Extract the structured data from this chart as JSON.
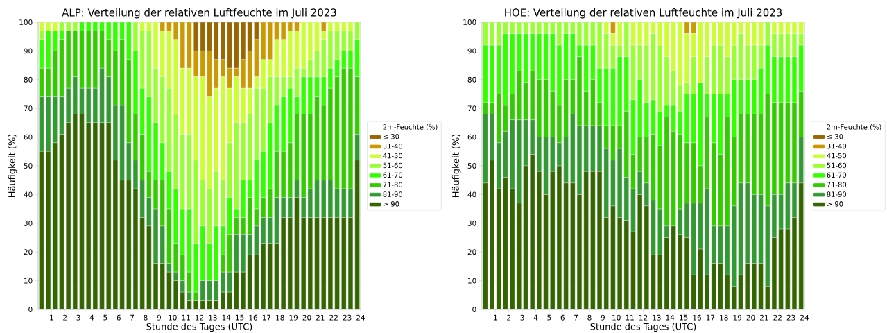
{
  "chart_data": [
    {
      "type": "bar",
      "stacked": true,
      "title": "ALP: Verteilung der relativen Luftfeuchte im Juli 2023",
      "xlabel": "Stunde des Tages (UTC)",
      "ylabel": "Häufigkeit (%)",
      "legend_title": "2m-Feuchte (%)",
      "legend": "right",
      "grid": "y",
      "x": [
        0.25,
        0.75,
        1.25,
        1.75,
        2.25,
        2.75,
        3.25,
        3.75,
        4.25,
        4.75,
        5.25,
        5.75,
        6.25,
        6.75,
        7.25,
        7.75,
        8.25,
        8.75,
        9.25,
        9.75,
        10.25,
        10.75,
        11.25,
        11.75,
        12.25,
        12.75,
        13.25,
        13.75,
        14.25,
        14.75,
        15.25,
        15.75,
        16.25,
        16.75,
        17.25,
        17.75,
        18.25,
        18.75,
        19.25,
        19.75,
        20.25,
        20.75,
        21.25,
        21.75,
        22.25,
        22.75,
        23.25,
        23.75
      ],
      "xlim": [
        0,
        24
      ],
      "xticks": [
        1,
        2,
        3,
        4,
        5,
        6,
        7,
        8,
        9,
        10,
        11,
        12,
        13,
        14,
        15,
        16,
        17,
        18,
        19,
        20,
        21,
        22,
        23,
        24
      ],
      "ylim": [
        0,
        100
      ],
      "yticks": [
        0,
        10,
        20,
        30,
        40,
        50,
        60,
        70,
        80,
        90,
        100
      ],
      "series": [
        {
          "name": "> 90",
          "color": "#336600",
          "values": [
            55,
            55,
            58,
            61,
            65,
            68,
            68,
            65,
            65,
            65,
            65,
            52,
            45,
            45,
            42,
            32,
            29,
            16,
            16,
            13,
            10,
            6,
            3,
            3,
            3,
            3,
            3,
            6,
            6,
            13,
            13,
            19,
            19,
            23,
            23,
            23,
            32,
            32,
            39,
            32,
            32,
            32,
            32,
            32,
            32,
            32,
            32,
            52
          ]
        },
        {
          "name": "81-90",
          "color": "#339933",
          "values": [
            19,
            19,
            16,
            13,
            12,
            13,
            9,
            12,
            12,
            19,
            16,
            19,
            26,
            13,
            10,
            13,
            10,
            19,
            13,
            3,
            3,
            4,
            3,
            0,
            7,
            7,
            7,
            7,
            7,
            13,
            13,
            7,
            10,
            9,
            9,
            16,
            7,
            7,
            6,
            7,
            10,
            13,
            13,
            13,
            10,
            10,
            10,
            9
          ]
        },
        {
          "name": "71-80",
          "color": "#33cc00",
          "values": [
            10,
            10,
            16,
            20,
            20,
            16,
            20,
            20,
            20,
            13,
            13,
            19,
            23,
            29,
            16,
            16,
            9,
            10,
            16,
            19,
            10,
            9,
            7,
            3,
            0,
            0,
            0,
            6,
            13,
            6,
            6,
            13,
            6,
            7,
            10,
            16,
            16,
            19,
            23,
            29,
            26,
            29,
            26,
            32,
            39,
            42,
            42,
            20
          ]
        },
        {
          "name": "61-70",
          "color": "#33ff00",
          "values": [
            10,
            13,
            7,
            3,
            0,
            0,
            3,
            3,
            3,
            3,
            6,
            10,
            6,
            13,
            22,
            16,
            26,
            20,
            13,
            13,
            19,
            16,
            22,
            17,
            19,
            13,
            19,
            10,
            13,
            3,
            13,
            6,
            17,
            16,
            23,
            16,
            19,
            19,
            6,
            13,
            13,
            7,
            10,
            7,
            6,
            6,
            6,
            13
          ]
        },
        {
          "name": "51-60",
          "color": "#99ff33",
          "values": [
            3,
            0,
            0,
            3,
            3,
            3,
            0,
            0,
            0,
            0,
            0,
            0,
            0,
            0,
            10,
            20,
            23,
            19,
            23,
            29,
            26,
            26,
            26,
            29,
            16,
            19,
            19,
            16,
            19,
            30,
            20,
            23,
            25,
            22,
            16,
            10,
            7,
            4,
            10,
            3,
            6,
            9,
            13,
            13,
            10,
            7,
            7,
            6
          ]
        },
        {
          "name": "41-50",
          "color": "#ccff33",
          "values": [
            3,
            3,
            3,
            0,
            0,
            0,
            0,
            0,
            0,
            0,
            0,
            0,
            0,
            0,
            0,
            3,
            3,
            16,
            16,
            20,
            26,
            23,
            23,
            29,
            36,
            32,
            29,
            36,
            19,
            16,
            12,
            9,
            4,
            10,
            6,
            13,
            13,
            16,
            13,
            16,
            13,
            10,
            3,
            3,
            3,
            3,
            3,
            0
          ]
        },
        {
          "name": "31-40",
          "color": "#cc9900",
          "values": [
            0,
            0,
            0,
            0,
            0,
            0,
            0,
            0,
            0,
            0,
            0,
            0,
            0,
            0,
            0,
            0,
            0,
            0,
            3,
            3,
            6,
            16,
            16,
            9,
            9,
            16,
            10,
            6,
            7,
            3,
            10,
            13,
            13,
            13,
            13,
            6,
            6,
            3,
            3,
            0,
            0,
            0,
            3,
            0,
            0,
            0,
            0,
            0
          ]
        },
        {
          "name": "≤ 30",
          "color": "#996600",
          "values": [
            0,
            0,
            0,
            0,
            0,
            0,
            0,
            0,
            0,
            0,
            0,
            0,
            0,
            0,
            0,
            0,
            0,
            0,
            0,
            0,
            0,
            0,
            0,
            10,
            10,
            10,
            13,
            13,
            16,
            16,
            13,
            10,
            6,
            0,
            0,
            0,
            0,
            0,
            0,
            0,
            0,
            0,
            0,
            0,
            0,
            0,
            0,
            0
          ]
        }
      ]
    },
    {
      "type": "bar",
      "stacked": true,
      "title": "HOE: Verteilung der relativen Luftfeuchte im Juli 2023",
      "xlabel": "Stunde des Tages (UTC)",
      "ylabel": "Häufigkeit (%)",
      "legend_title": "2m-Feuchte (%)",
      "legend": "right",
      "grid": "y",
      "x": [
        0.25,
        0.75,
        1.25,
        1.75,
        2.25,
        2.75,
        3.25,
        3.75,
        4.25,
        4.75,
        5.25,
        5.75,
        6.25,
        6.75,
        7.25,
        7.75,
        8.25,
        8.75,
        9.25,
        9.75,
        10.25,
        10.75,
        11.25,
        11.75,
        12.25,
        12.75,
        13.25,
        13.75,
        14.25,
        14.75,
        15.25,
        15.75,
        16.25,
        16.75,
        17.25,
        17.75,
        18.25,
        18.75,
        19.25,
        19.75,
        20.25,
        20.75,
        21.25,
        21.75,
        22.25,
        22.75,
        23.25,
        23.75
      ],
      "xlim": [
        0,
        24
      ],
      "xticks": [
        1,
        2,
        3,
        4,
        5,
        6,
        7,
        8,
        9,
        10,
        11,
        12,
        13,
        14,
        15,
        16,
        17,
        18,
        19,
        20,
        21,
        22,
        23,
        24
      ],
      "ylim": [
        0,
        100
      ],
      "yticks": [
        0,
        10,
        20,
        30,
        40,
        50,
        60,
        70,
        80,
        90,
        100
      ],
      "series": [
        {
          "name": "> 90",
          "color": "#336600",
          "values": [
            44,
            52,
            42,
            46,
            42,
            37,
            50,
            54,
            48,
            40,
            48,
            50,
            44,
            44,
            40,
            48,
            48,
            48,
            32,
            36,
            32,
            31,
            27,
            40,
            36,
            19,
            19,
            25,
            29,
            26,
            25,
            12,
            21,
            12,
            16,
            16,
            12,
            8,
            12,
            16,
            16,
            16,
            8,
            25,
            28,
            28,
            32,
            44
          ]
        },
        {
          "name": "81-90",
          "color": "#339933",
          "values": [
            24,
            16,
            16,
            16,
            24,
            29,
            16,
            12,
            12,
            20,
            12,
            8,
            16,
            24,
            24,
            16,
            16,
            16,
            24,
            16,
            24,
            15,
            15,
            8,
            8,
            19,
            16,
            4,
            0,
            9,
            12,
            25,
            16,
            30,
            13,
            13,
            17,
            28,
            32,
            28,
            24,
            24,
            28,
            15,
            12,
            16,
            12,
            16
          ]
        },
        {
          "name": "71-80",
          "color": "#33cc00",
          "values": [
            4,
            4,
            17,
            9,
            9,
            17,
            13,
            17,
            20,
            20,
            16,
            13,
            20,
            12,
            24,
            12,
            16,
            8,
            8,
            12,
            8,
            23,
            12,
            12,
            16,
            23,
            22,
            38,
            33,
            26,
            21,
            21,
            13,
            25,
            29,
            25,
            38,
            24,
            24,
            24,
            28,
            28,
            39,
            32,
            32,
            28,
            28,
            16
          ]
        },
        {
          "name": "61-70",
          "color": "#33ff00",
          "values": [
            20,
            20,
            17,
            25,
            21,
            13,
            17,
            13,
            16,
            16,
            20,
            21,
            16,
            16,
            4,
            16,
            12,
            12,
            20,
            20,
            24,
            19,
            19,
            20,
            12,
            12,
            12,
            4,
            9,
            8,
            17,
            17,
            29,
            8,
            17,
            21,
            8,
            20,
            12,
            12,
            12,
            16,
            17,
            16,
            16,
            16,
            16,
            16
          ]
        },
        {
          "name": "51-60",
          "color": "#99ff33",
          "values": [
            8,
            8,
            8,
            4,
            4,
            4,
            4,
            4,
            4,
            4,
            4,
            8,
            4,
            4,
            8,
            8,
            8,
            16,
            12,
            8,
            4,
            12,
            19,
            12,
            20,
            23,
            23,
            17,
            12,
            9,
            4,
            13,
            0,
            13,
            17,
            17,
            13,
            12,
            16,
            12,
            12,
            8,
            8,
            8,
            8,
            8,
            8,
            4
          ]
        },
        {
          "name": "41-50",
          "color": "#ccff33",
          "values": [
            0,
            0,
            0,
            0,
            0,
            0,
            0,
            0,
            0,
            0,
            0,
            0,
            0,
            0,
            0,
            0,
            0,
            0,
            4,
            4,
            8,
            0,
            8,
            8,
            8,
            4,
            8,
            12,
            17,
            22,
            17,
            8,
            21,
            12,
            8,
            8,
            12,
            8,
            4,
            8,
            8,
            8,
            0,
            4,
            4,
            4,
            4,
            4
          ]
        },
        {
          "name": "31-40",
          "color": "#cc9900",
          "values": [
            0,
            0,
            0,
            0,
            0,
            0,
            0,
            0,
            0,
            0,
            0,
            0,
            0,
            0,
            0,
            0,
            0,
            0,
            0,
            4,
            0,
            0,
            0,
            0,
            0,
            0,
            0,
            0,
            0,
            0,
            4,
            4,
            0,
            0,
            0,
            0,
            0,
            0,
            0,
            0,
            0,
            0,
            0,
            0,
            0,
            0,
            0,
            0
          ]
        },
        {
          "name": "≤ 30",
          "color": "#996600",
          "values": [
            0,
            0,
            0,
            0,
            0,
            0,
            0,
            0,
            0,
            0,
            0,
            0,
            0,
            0,
            0,
            0,
            0,
            0,
            0,
            0,
            0,
            0,
            0,
            0,
            0,
            0,
            0,
            0,
            0,
            0,
            0,
            0,
            0,
            0,
            0,
            0,
            0,
            0,
            0,
            0,
            0,
            0,
            0,
            0,
            0,
            0,
            0,
            0
          ]
        }
      ]
    }
  ]
}
